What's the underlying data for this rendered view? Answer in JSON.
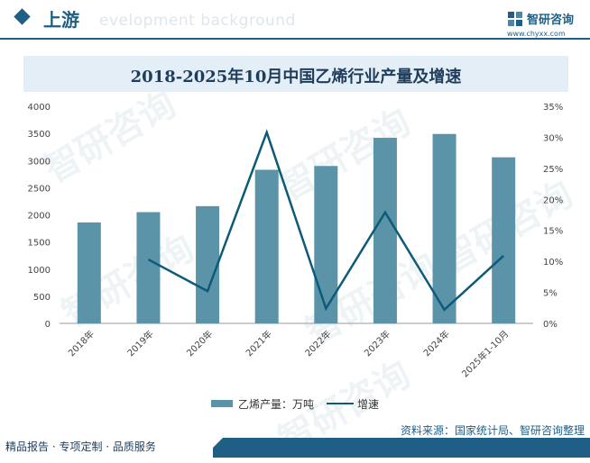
{
  "header": {
    "title": "上游",
    "bg_text": "evelopment background",
    "logo_name": "智研咨询",
    "logo_url": "www.chyxx.com"
  },
  "watermark_text": "智研咨询",
  "chart_data": {
    "type": "bar",
    "title": "2018-2025年10月中国乙烯行业产量及增速",
    "categories": [
      "2018年",
      "2019年",
      "2020年",
      "2021年",
      "2022年",
      "2023年",
      "2024年",
      "2025年1-10月"
    ],
    "series": [
      {
        "name": "乙烯产量：万吨",
        "type": "bar",
        "axis": "left",
        "values": [
          1860,
          2050,
          2160,
          2830,
          2900,
          3420,
          3490,
          3060
        ]
      },
      {
        "name": "增速",
        "type": "line",
        "axis": "right",
        "values": [
          null,
          10.3,
          5.2,
          30.8,
          2.4,
          17.9,
          2.2,
          10.9
        ]
      }
    ],
    "y_left": {
      "min": 0,
      "max": 4000,
      "ticks": [
        "0",
        "500",
        "1000",
        "1500",
        "2000",
        "2500",
        "3000",
        "3500",
        "4000"
      ]
    },
    "y_right": {
      "min": 0,
      "max": 35,
      "ticks": [
        "0%",
        "5%",
        "10%",
        "15%",
        "20%",
        "25%",
        "30%",
        "35%"
      ]
    },
    "grid": false,
    "legend_position": "bottom",
    "colors": {
      "bar": "#5b93a8",
      "line": "#0d5a79"
    }
  },
  "source": "资料来源：国家统计局、智研咨询整理",
  "footer": {
    "left_text": "精品报告 · 专项定制 · 品质服务"
  }
}
